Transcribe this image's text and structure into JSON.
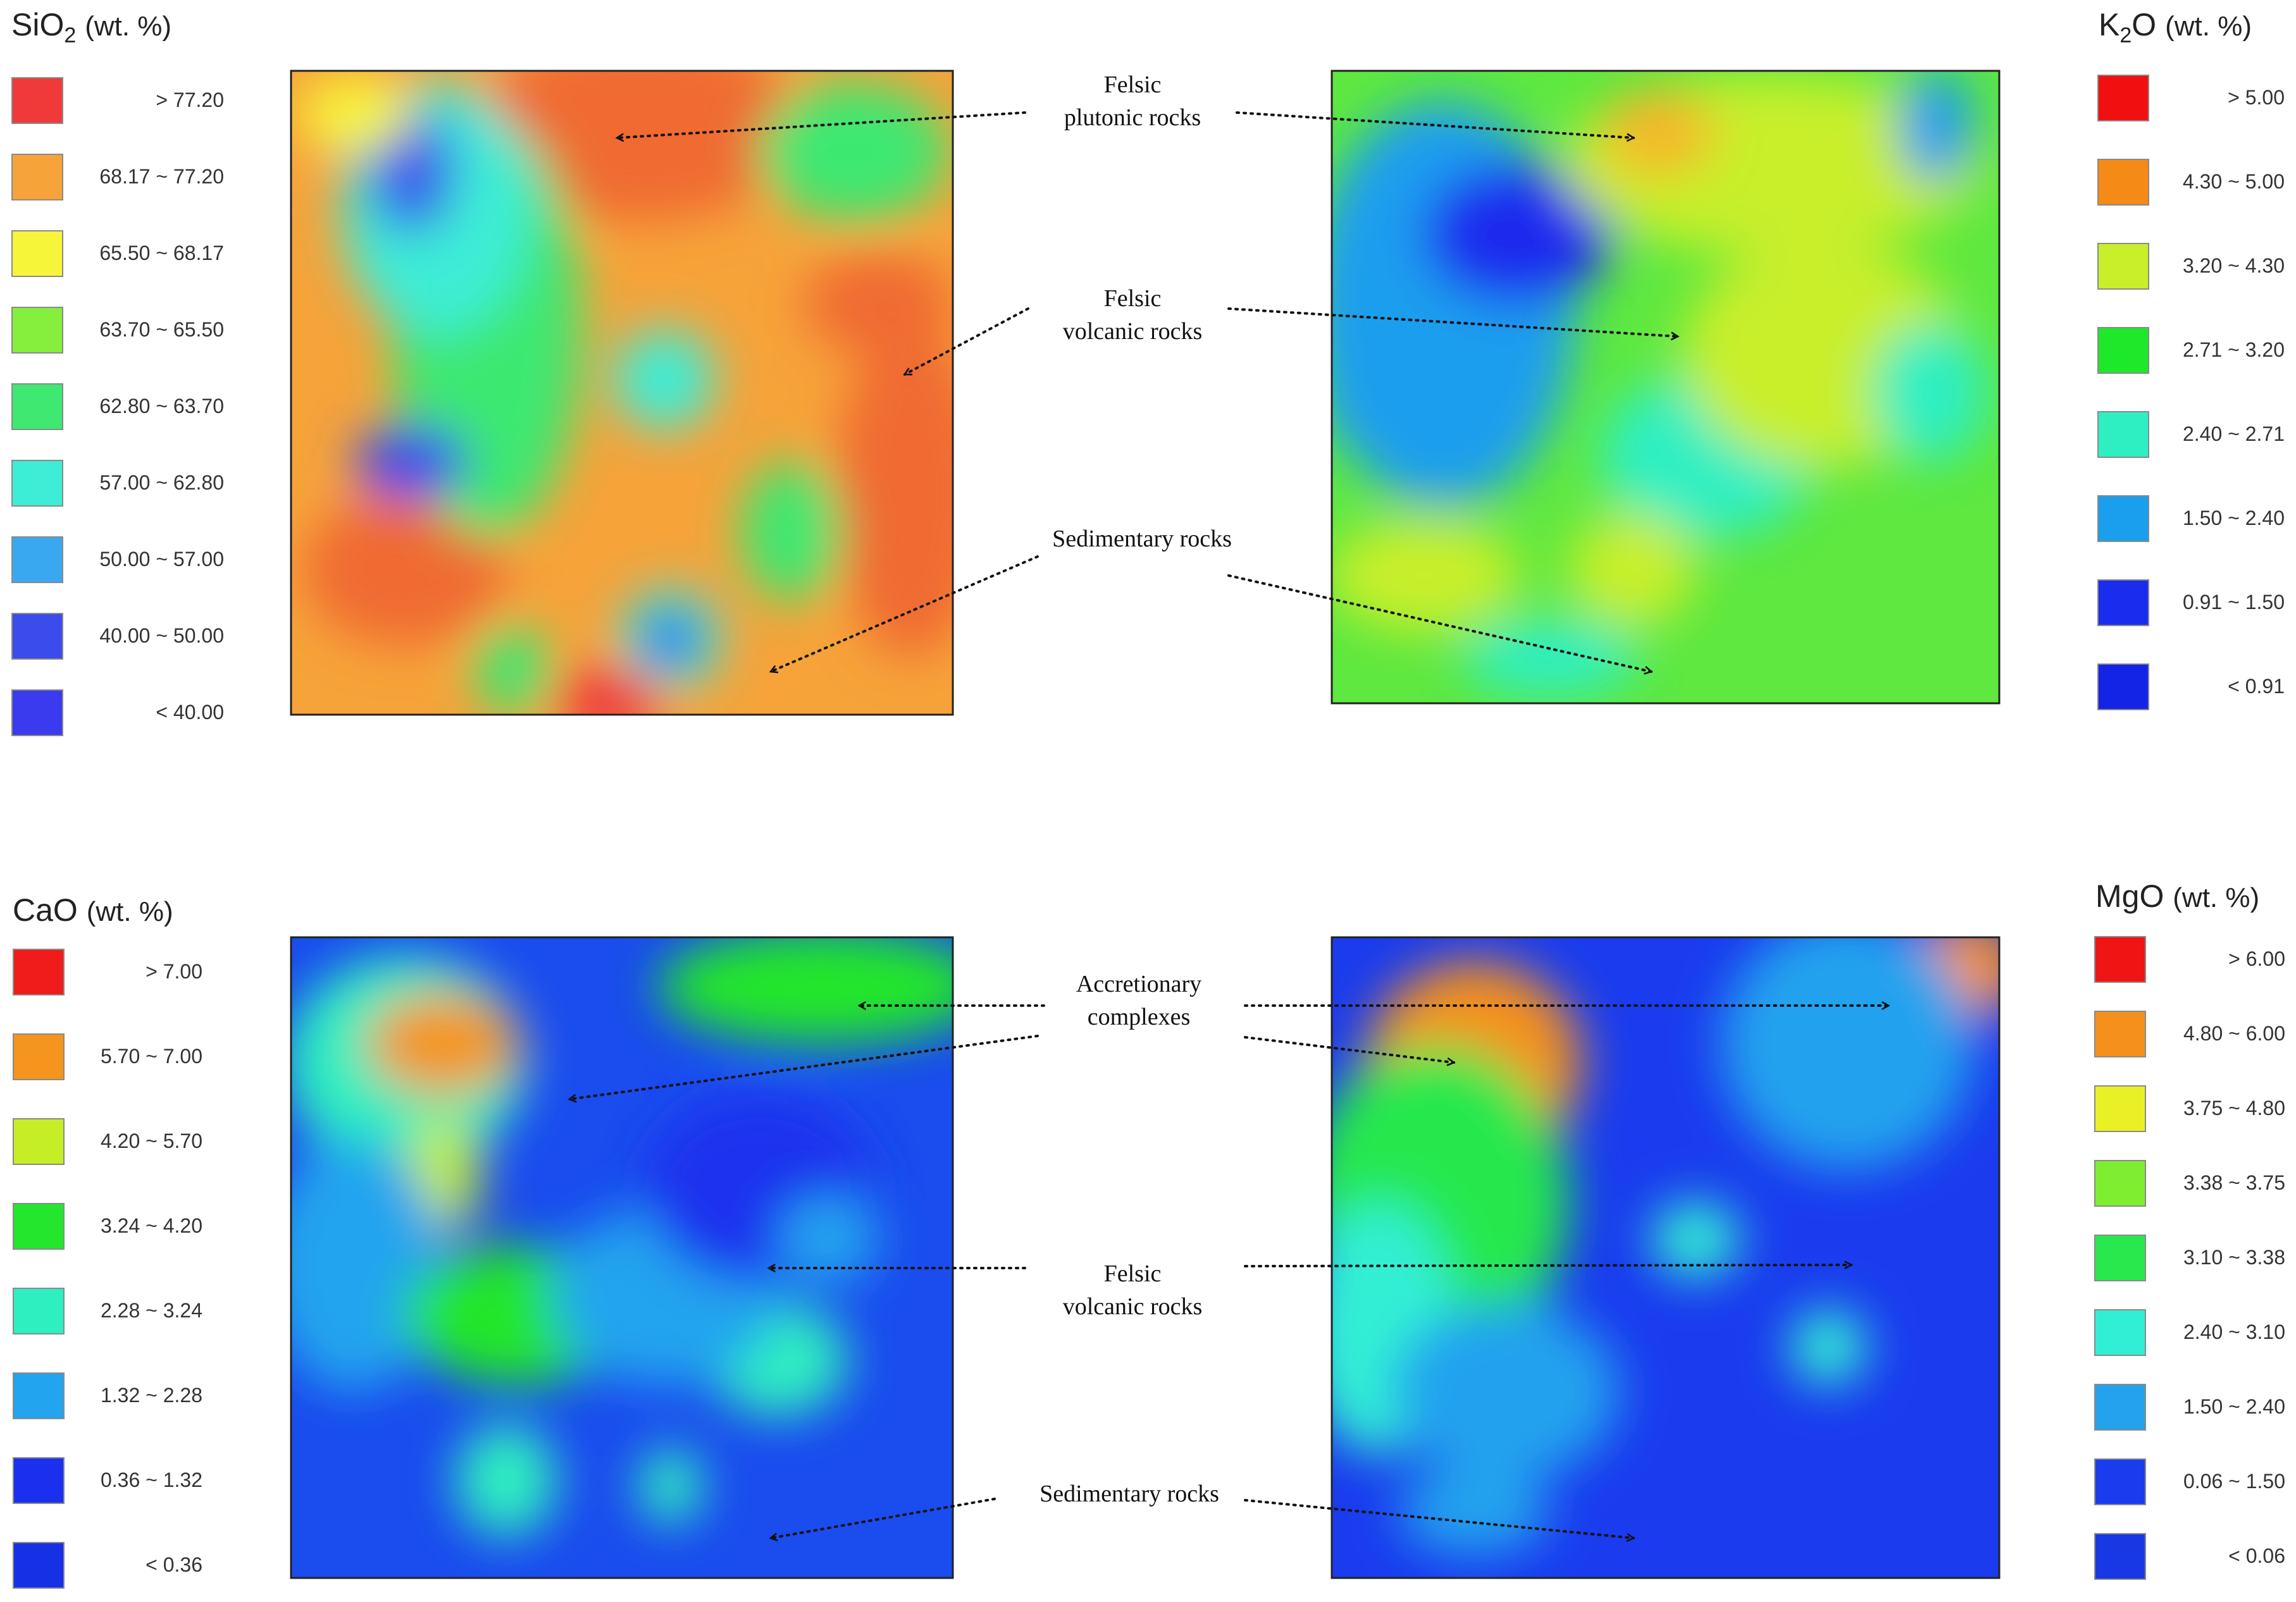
{
  "legends": {
    "sio2": {
      "oxide": "SiO",
      "sub": "2",
      "unit": "(wt. %)",
      "items": [
        {
          "label": "> 77.20",
          "color": "#f03a3a"
        },
        {
          "label": "68.17 ~ 77.20",
          "color": "#f6a33a"
        },
        {
          "label": "65.50 ~ 68.17",
          "color": "#f7f53a"
        },
        {
          "label": "63.70 ~ 65.50",
          "color": "#86ee3c"
        },
        {
          "label": "62.80 ~ 63.70",
          "color": "#3ee871"
        },
        {
          "label": "57.00 ~ 62.80",
          "color": "#3eedd6"
        },
        {
          "label": "50.00 ~ 57.00",
          "color": "#3aa8f0"
        },
        {
          "label": "40.00 ~ 50.00",
          "color": "#3a4cec"
        },
        {
          "label": "< 40.00",
          "color": "#3a3aee"
        }
      ]
    },
    "k2o": {
      "oxide": "K",
      "sub": "2",
      "oxide_tail": "O",
      "unit": "(wt. %)",
      "items": [
        {
          "label": "> 5.00",
          "color": "#f01010"
        },
        {
          "label": "4.30 ~ 5.00",
          "color": "#f58a16"
        },
        {
          "label": "3.20 ~ 4.30",
          "color": "#c8ef2a"
        },
        {
          "label": "2.71 ~ 3.20",
          "color": "#1ee82a"
        },
        {
          "label": "2.40 ~ 2.71",
          "color": "#2eefc2"
        },
        {
          "label": "1.50 ~ 2.40",
          "color": "#1a9eee"
        },
        {
          "label": "0.91 ~ 1.50",
          "color": "#1a2cee"
        },
        {
          "label": "< 0.91",
          "color": "#1424e6"
        }
      ]
    },
    "cao": {
      "oxide": "CaO",
      "unit": "(wt. %)",
      "items": [
        {
          "label": "> 7.00",
          "color": "#f01c1c"
        },
        {
          "label": "5.70 ~ 7.00",
          "color": "#f5951e"
        },
        {
          "label": "4.20 ~ 5.70",
          "color": "#c6ee26"
        },
        {
          "label": "3.24 ~ 4.20",
          "color": "#24e62c"
        },
        {
          "label": "2.28 ~ 3.24",
          "color": "#2eefc0"
        },
        {
          "label": "1.32 ~ 2.28",
          "color": "#22a4ee"
        },
        {
          "label": "0.36 ~ 1.32",
          "color": "#1a30ee"
        },
        {
          "label": "< 0.36",
          "color": "#1630e6"
        }
      ]
    },
    "mgo": {
      "oxide": "MgO",
      "unit": "(wt. %)",
      "items": [
        {
          "label": "> 6.00",
          "color": "#f01414"
        },
        {
          "label": "4.80 ~ 6.00",
          "color": "#f5901c"
        },
        {
          "label": "3.75 ~ 4.80",
          "color": "#eaf026"
        },
        {
          "label": "3.38 ~ 3.75",
          "color": "#7eee30"
        },
        {
          "label": "3.10 ~ 3.38",
          "color": "#28e84e"
        },
        {
          "label": "2.40 ~ 3.10",
          "color": "#30efd4"
        },
        {
          "label": "1.50 ~ 2.40",
          "color": "#24a2ee"
        },
        {
          "label": "0.06 ~ 1.50",
          "color": "#1a3cee"
        },
        {
          "label": "< 0.06",
          "color": "#1838e6"
        }
      ]
    }
  },
  "annotations": {
    "top": {
      "felsic_plutonic": [
        "Felsic",
        "plutonic rocks"
      ],
      "felsic_volcanic": [
        "Felsic",
        "volcanic rocks"
      ],
      "sedimentary": "Sedimentary rocks"
    },
    "bottom": {
      "accretionary": [
        "Accretionary",
        "complexes"
      ],
      "felsic_volcanic": [
        "Felsic",
        "volcanic rocks"
      ],
      "sedimentary": "Sedimentary rocks"
    }
  },
  "maps": {
    "sio2": {
      "base": "#f6a33a",
      "blobs": [
        {
          "c": "#f06a30"
        },
        {
          "c": "#f06a30"
        },
        {
          "c": "#f06a30"
        },
        {
          "c": "#f06a30"
        },
        {
          "c": "#3ee871"
        },
        {
          "c": "#3eedd6"
        },
        {
          "c": "#3a5cec"
        },
        {
          "c": "#3ee871"
        },
        {
          "c": "#3eedd6"
        },
        {
          "c": "#3a4cec"
        },
        {
          "c": "#3ee871"
        },
        {
          "c": "#3eedd6"
        },
        {
          "c": "#3a3aee"
        },
        {
          "c": "#f03a3a"
        },
        {
          "c": "#f7f53a"
        },
        {
          "c": "#3ee871"
        }
      ]
    },
    "k2o": {
      "base": "#5ee840",
      "blobs": [
        {
          "c": "#1a9eee"
        },
        {
          "c": "#1a2cee"
        },
        {
          "c": "#2eefc2"
        },
        {
          "c": "#c8ef2a"
        },
        {
          "c": "#f5b82a"
        },
        {
          "c": "#c8ef2a"
        },
        {
          "c": "#2eefc2"
        },
        {
          "c": "#1a9eee"
        },
        {
          "c": "#c8ef2a"
        },
        {
          "c": "#c8ef2a"
        },
        {
          "c": "#2eefc2"
        },
        {
          "c": "#1a9eee"
        }
      ]
    },
    "cao": {
      "base": "#1a4cee",
      "blobs": [
        {
          "c": "#24e62c"
        },
        {
          "c": "#2eefc0"
        },
        {
          "c": "#f5951e"
        },
        {
          "c": "#c6ee26"
        },
        {
          "c": "#22a4ee"
        },
        {
          "c": "#24e62c"
        },
        {
          "c": "#2eefc0"
        },
        {
          "c": "#22a4ee"
        },
        {
          "c": "#2eefc0"
        },
        {
          "c": "#1a30ee"
        },
        {
          "c": "#22a4ee"
        },
        {
          "c": "#2eefc0"
        }
      ]
    },
    "mgo": {
      "base": "#1a3cee",
      "blobs": [
        {
          "c": "#f5901c"
        },
        {
          "c": "#eaf026"
        },
        {
          "c": "#28e84e"
        },
        {
          "c": "#30efd4"
        },
        {
          "c": "#24a2ee"
        },
        {
          "c": "#f5901c"
        },
        {
          "c": "#30efd4"
        },
        {
          "c": "#24a2ee"
        },
        {
          "c": "#30efd4"
        },
        {
          "c": "#30efd4"
        },
        {
          "c": "#24a2ee"
        }
      ]
    }
  }
}
